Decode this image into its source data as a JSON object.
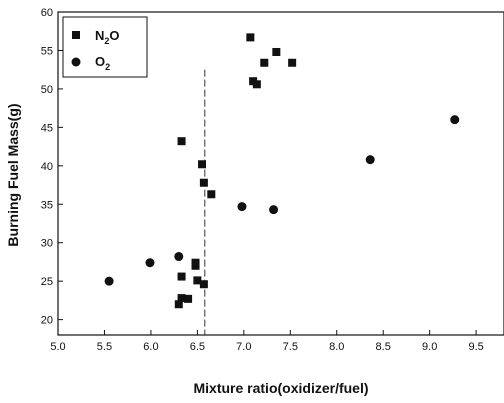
{
  "chart_data": {
    "type": "scatter",
    "xlabel": "Mixture ratio(oxidizer/fuel)",
    "ylabel": "Burning Fuel Mass(g)",
    "xlim": [
      5.0,
      9.8
    ],
    "ylim": [
      18,
      60
    ],
    "xticks": [
      "5.0",
      "5.5",
      "6.0",
      "6.5",
      "7.0",
      "7.5",
      "8.0",
      "8.5",
      "9.0",
      "9.5"
    ],
    "yticks": [
      "20",
      "25",
      "30",
      "35",
      "40",
      "45",
      "50",
      "55",
      "60"
    ],
    "grid": false,
    "legend_position": "top-left",
    "reference_line": {
      "x": 6.58,
      "style": "dashed"
    },
    "series": [
      {
        "name": "N2O",
        "name_main": "N",
        "name_sub": "2",
        "name_tail": "O",
        "marker": "square",
        "points": [
          {
            "x": 6.3,
            "y": 22.0
          },
          {
            "x": 6.33,
            "y": 22.8
          },
          {
            "x": 6.4,
            "y": 22.7
          },
          {
            "x": 6.33,
            "y": 25.6
          },
          {
            "x": 6.5,
            "y": 25.1
          },
          {
            "x": 6.57,
            "y": 24.6
          },
          {
            "x": 6.48,
            "y": 27.0
          },
          {
            "x": 6.48,
            "y": 27.4
          },
          {
            "x": 6.33,
            "y": 43.2
          },
          {
            "x": 6.55,
            "y": 40.2
          },
          {
            "x": 6.57,
            "y": 37.8
          },
          {
            "x": 6.65,
            "y": 36.3
          },
          {
            "x": 7.07,
            "y": 56.7
          },
          {
            "x": 7.1,
            "y": 51.0
          },
          {
            "x": 7.14,
            "y": 50.6
          },
          {
            "x": 7.22,
            "y": 53.4
          },
          {
            "x": 7.35,
            "y": 54.8
          },
          {
            "x": 7.52,
            "y": 53.4
          }
        ]
      },
      {
        "name": "O2",
        "name_main": "O",
        "name_sub": "2",
        "name_tail": "",
        "marker": "circle",
        "points": [
          {
            "x": 5.55,
            "y": 25.0
          },
          {
            "x": 5.99,
            "y": 27.4
          },
          {
            "x": 6.3,
            "y": 28.2
          },
          {
            "x": 6.98,
            "y": 34.7
          },
          {
            "x": 7.32,
            "y": 34.3
          },
          {
            "x": 8.36,
            "y": 40.8
          },
          {
            "x": 9.27,
            "y": 46.0
          }
        ]
      }
    ]
  }
}
